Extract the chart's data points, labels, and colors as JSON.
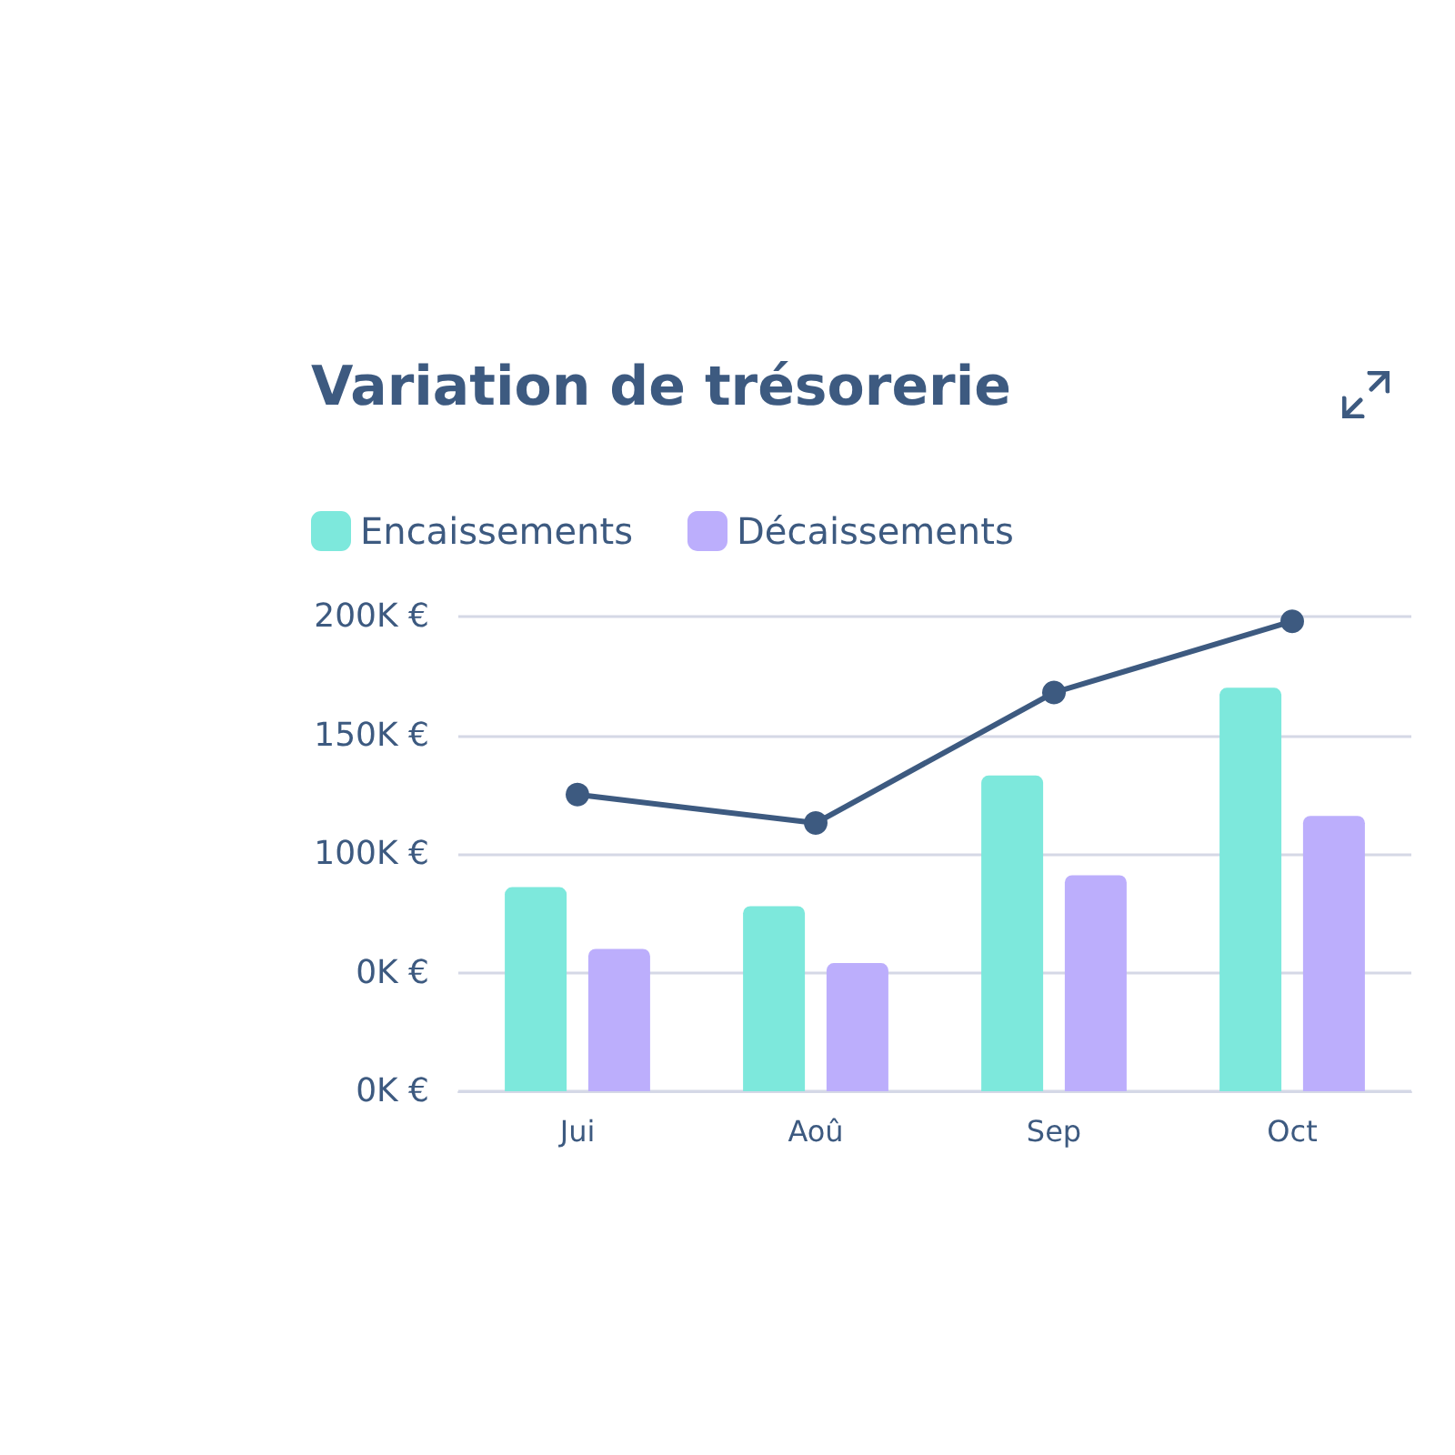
{
  "chart_data": {
    "type": "bar",
    "title": "Variation de trésorerie",
    "categories": [
      "Jui",
      "Aoû",
      "Sep",
      "Oct"
    ],
    "series": [
      {
        "name": "Encaissements",
        "color": "#7de8dc",
        "values": [
          86,
          78,
          133,
          170
        ]
      },
      {
        "name": "Décaissements",
        "color": "#bcaefc",
        "values": [
          60,
          54,
          91,
          116
        ]
      },
      {
        "type": "line",
        "color": "#3d5a80",
        "values": [
          125,
          113,
          168,
          198
        ],
        "marker": "circle"
      }
    ],
    "ylim": [
      0,
      200
    ],
    "yticks": [
      {
        "value": 0,
        "label": "0K €"
      },
      {
        "value": 50,
        "label": "0K €"
      },
      {
        "value": 100,
        "label": "100K €"
      },
      {
        "value": 150,
        "label": "150K €"
      },
      {
        "value": 200,
        "label": "200K €"
      }
    ],
    "grid": "y",
    "legend": "top left"
  }
}
